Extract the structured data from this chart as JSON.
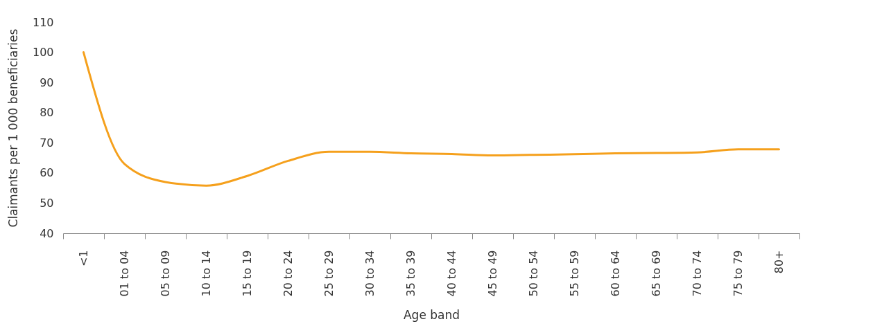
{
  "chart_data": {
    "type": "line",
    "xlabel": "Age band",
    "ylabel": "Claimants per 1 000 beneficiaries",
    "categories": [
      "<1",
      "01 to 04",
      "05 to 09",
      "10 to 14",
      "15 to 19",
      "20 to 24",
      "25 to 29",
      "30 to 34",
      "35 to 39",
      "40 to 44",
      "45 to 49",
      "50 to 54",
      "55 to 59",
      "60 to 64",
      "65 to 69",
      "70 to 74",
      "75 to 79",
      "80+"
    ],
    "series": [
      {
        "color": "#f5a01c",
        "values": [
          100,
          63,
          57,
          55.8,
          59,
          64,
          67,
          67,
          66.5,
          66.3,
          65.8,
          66,
          66.2,
          66.5,
          66.6,
          66.8,
          67.8,
          67.8
        ]
      }
    ],
    "ylim": [
      40,
      110
    ],
    "yticks": [
      40,
      50,
      60,
      70,
      80,
      90,
      100,
      110
    ],
    "grid": false
  }
}
